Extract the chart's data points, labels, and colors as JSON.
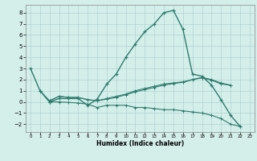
{
  "xlabel": "Humidex (Indice chaleur)",
  "ylabel": "",
  "bg_color": "#d4eeea",
  "grid_color": "#aacccc",
  "line_color": "#2e7d6e",
  "xlim": [
    -0.5,
    23.5
  ],
  "ylim": [
    -2.7,
    8.7
  ],
  "xticks": [
    0,
    1,
    2,
    3,
    4,
    5,
    6,
    7,
    8,
    9,
    10,
    11,
    12,
    13,
    14,
    15,
    16,
    17,
    18,
    19,
    20,
    21,
    22,
    23
  ],
  "yticks": [
    -2,
    -1,
    0,
    1,
    2,
    3,
    4,
    5,
    6,
    7,
    8
  ],
  "series": [
    {
      "x": [
        0,
        1,
        2,
        3,
        4,
        5,
        6,
        7,
        8,
        9,
        10,
        11,
        12,
        13,
        14,
        15,
        16,
        17,
        18,
        19,
        20,
        21,
        22
      ],
      "y": [
        3,
        1,
        0,
        0.3,
        0.3,
        0.3,
        -0.3,
        0.25,
        1.6,
        2.5,
        4.0,
        5.2,
        6.3,
        7.0,
        8.0,
        8.2,
        6.5,
        2.5,
        2.3,
        1.5,
        0.2,
        -1.2,
        -2.2
      ]
    },
    {
      "x": [
        1,
        2,
        3,
        4,
        5,
        6,
        7,
        8,
        9,
        10,
        11,
        12,
        13,
        14,
        15,
        16,
        17,
        18,
        19,
        20,
        21
      ],
      "y": [
        1,
        0.1,
        0.5,
        0.4,
        0.4,
        0.2,
        0.1,
        0.3,
        0.5,
        0.7,
        1.0,
        1.2,
        1.4,
        1.6,
        1.7,
        1.8,
        2.0,
        2.2,
        2.0,
        1.7,
        1.5
      ]
    },
    {
      "x": [
        2,
        3,
        4,
        5,
        6,
        7,
        8,
        9,
        10,
        11,
        12,
        13,
        14,
        15,
        16,
        17,
        18,
        19,
        20,
        21
      ],
      "y": [
        0.1,
        0.5,
        0.4,
        0.4,
        0.2,
        0.1,
        0.25,
        0.4,
        0.65,
        0.9,
        1.1,
        1.3,
        1.5,
        1.65,
        1.75,
        2.0,
        2.15,
        1.95,
        1.6,
        1.5
      ]
    },
    {
      "x": [
        1,
        2,
        3,
        4,
        5,
        6,
        7,
        8,
        9,
        10,
        11,
        12,
        13,
        14,
        15,
        16,
        17,
        18,
        19,
        20,
        21,
        22
      ],
      "y": [
        1,
        0.0,
        0.0,
        -0.05,
        -0.1,
        -0.2,
        -0.5,
        -0.3,
        -0.3,
        -0.3,
        -0.5,
        -0.5,
        -0.6,
        -0.7,
        -0.7,
        -0.8,
        -0.9,
        -1.0,
        -1.2,
        -1.5,
        -2.0,
        -2.2
      ]
    }
  ]
}
